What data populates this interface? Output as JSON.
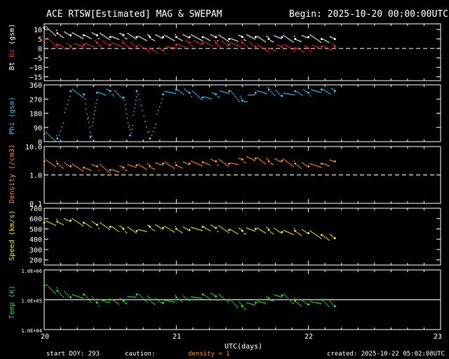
{
  "header": {
    "title": "ACE RTSW[Estimated] MAG & SWEPAM",
    "begin": "Begin: 2025-10-20 00:00:00UTC"
  },
  "footer": {
    "start_doy": "start DOY: 293",
    "caution": "caution:",
    "density_note": "density < 1",
    "created": "created: 2025-10-22 05:02:08UTC"
  },
  "x_axis": {
    "label": "UTC(days)",
    "ticks": [
      "20",
      "21",
      "22",
      "23"
    ]
  },
  "colors": {
    "bt": "#ffffff",
    "bz": "#ff2020",
    "phi": "#2ec0f0",
    "density": "#ff8c20",
    "speed": "#f0e020",
    "temp": "#20e020"
  },
  "chart_data": [
    {
      "type": "scatter",
      "title": "",
      "ylabel_parts": [
        "Bt",
        "Bz",
        "(gsm)"
      ],
      "ylim": [
        -17,
        13
      ],
      "yticks": [
        "10",
        "5",
        "0",
        "−5",
        "−10",
        "−15"
      ],
      "xlim": [
        0,
        3
      ],
      "reference_line": 0,
      "series": [
        {
          "name": "Bt",
          "x": [
            0.0,
            0.1,
            0.2,
            0.3,
            0.4,
            0.5,
            0.6,
            0.7,
            0.8,
            0.9,
            1.0,
            1.1,
            1.2,
            1.3,
            1.4,
            1.5,
            1.6,
            1.7,
            1.8,
            1.9,
            2.0,
            2.1,
            2.2
          ],
          "y": [
            11,
            8,
            7,
            7,
            7,
            6,
            7,
            6,
            6,
            6,
            6,
            6,
            6,
            6,
            5,
            6,
            6,
            5,
            6,
            5,
            6,
            5,
            5
          ]
        },
        {
          "name": "Bz",
          "x": [
            0.0,
            0.1,
            0.2,
            0.3,
            0.4,
            0.5,
            0.6,
            0.7,
            0.8,
            0.9,
            1.0,
            1.1,
            1.2,
            1.3,
            1.4,
            1.5,
            1.6,
            1.7,
            1.8,
            1.9,
            2.0,
            2.1,
            2.2
          ],
          "y": [
            5,
            2,
            1,
            2,
            3,
            2,
            3,
            1,
            0,
            -1,
            2,
            3,
            3,
            3,
            2,
            3,
            1,
            0,
            1,
            0,
            0,
            1,
            1
          ]
        }
      ]
    },
    {
      "type": "scatter",
      "title": "",
      "ylabel_parts": [
        "Phi (gsm)"
      ],
      "ylim": [
        0,
        360
      ],
      "yticks": [
        "360",
        "270",
        "180",
        "90",
        "0"
      ],
      "xlim": [
        0,
        3
      ],
      "series": [
        {
          "name": "Phi",
          "x": [
            0.0,
            0.1,
            0.2,
            0.3,
            0.35,
            0.4,
            0.5,
            0.6,
            0.65,
            0.7,
            0.8,
            0.9,
            1.0,
            1.1,
            1.2,
            1.3,
            1.4,
            1.5,
            1.6,
            1.7,
            1.8,
            1.9,
            2.0,
            2.1,
            2.2
          ],
          "y": [
            50,
            20,
            320,
            300,
            30,
            310,
            320,
            280,
            40,
            320,
            20,
            300,
            330,
            310,
            280,
            300,
            320,
            260,
            310,
            330,
            290,
            320,
            310,
            330,
            320
          ]
        }
      ]
    },
    {
      "type": "scatter",
      "title": "",
      "ylabel_parts": [
        "Density (/cm3)"
      ],
      "yscale": "log",
      "ylim": [
        0.1,
        10
      ],
      "yticks": [
        "10.0",
        "1.0",
        "0.1"
      ],
      "xlim": [
        0,
        3
      ],
      "reference_line": 1.0,
      "series": [
        {
          "name": "Density",
          "x": [
            0.0,
            0.1,
            0.2,
            0.3,
            0.4,
            0.5,
            0.6,
            0.7,
            0.8,
            0.9,
            1.0,
            1.1,
            1.2,
            1.3,
            1.4,
            1.5,
            1.6,
            1.7,
            1.8,
            1.9,
            2.0,
            2.1,
            2.2
          ],
          "y": [
            3.0,
            2.5,
            2.0,
            1.8,
            2.0,
            1.5,
            1.8,
            2.2,
            2.0,
            2.5,
            2.2,
            2.5,
            2.8,
            3.0,
            2.5,
            3.5,
            3.8,
            3.0,
            3.2,
            2.5,
            2.0,
            2.5,
            3.0
          ]
        }
      ]
    },
    {
      "type": "scatter",
      "title": "",
      "ylabel_parts": [
        "Speed (km/s)"
      ],
      "ylim": [
        150,
        700
      ],
      "yticks": [
        "700",
        "600",
        "500",
        "400",
        "300",
        "200"
      ],
      "xlim": [
        0,
        3
      ],
      "series": [
        {
          "name": "Speed",
          "x": [
            0.0,
            0.1,
            0.2,
            0.3,
            0.4,
            0.5,
            0.6,
            0.7,
            0.8,
            0.9,
            1.0,
            1.1,
            1.2,
            1.3,
            1.4,
            1.5,
            1.6,
            1.7,
            1.8,
            1.9,
            2.0,
            2.1,
            2.2
          ],
          "y": [
            560,
            570,
            580,
            560,
            540,
            520,
            500,
            480,
            520,
            510,
            500,
            490,
            520,
            510,
            490,
            480,
            500,
            490,
            470,
            480,
            460,
            440,
            410
          ]
        }
      ]
    },
    {
      "type": "scatter",
      "title": "",
      "ylabel_parts": [
        "Temp (K)"
      ],
      "yscale": "log",
      "ylim": [
        10000,
        1000000
      ],
      "yticks": [
        "1.0E+06",
        "1.0E+05",
        "1.0E+04"
      ],
      "xlim": [
        0,
        3
      ],
      "reference_line": 100000,
      "series": [
        {
          "name": "Temp",
          "x": [
            0.0,
            0.1,
            0.2,
            0.3,
            0.4,
            0.5,
            0.6,
            0.7,
            0.8,
            0.9,
            1.0,
            1.1,
            1.2,
            1.3,
            1.4,
            1.5,
            1.6,
            1.7,
            1.8,
            1.9,
            2.0,
            2.1,
            2.2
          ],
          "y": [
            300000,
            200000,
            120000,
            150000,
            80000,
            100000,
            90000,
            150000,
            100000,
            80000,
            120000,
            100000,
            150000,
            130000,
            100000,
            60000,
            80000,
            110000,
            140000,
            90000,
            70000,
            100000,
            60000
          ]
        }
      ]
    }
  ]
}
